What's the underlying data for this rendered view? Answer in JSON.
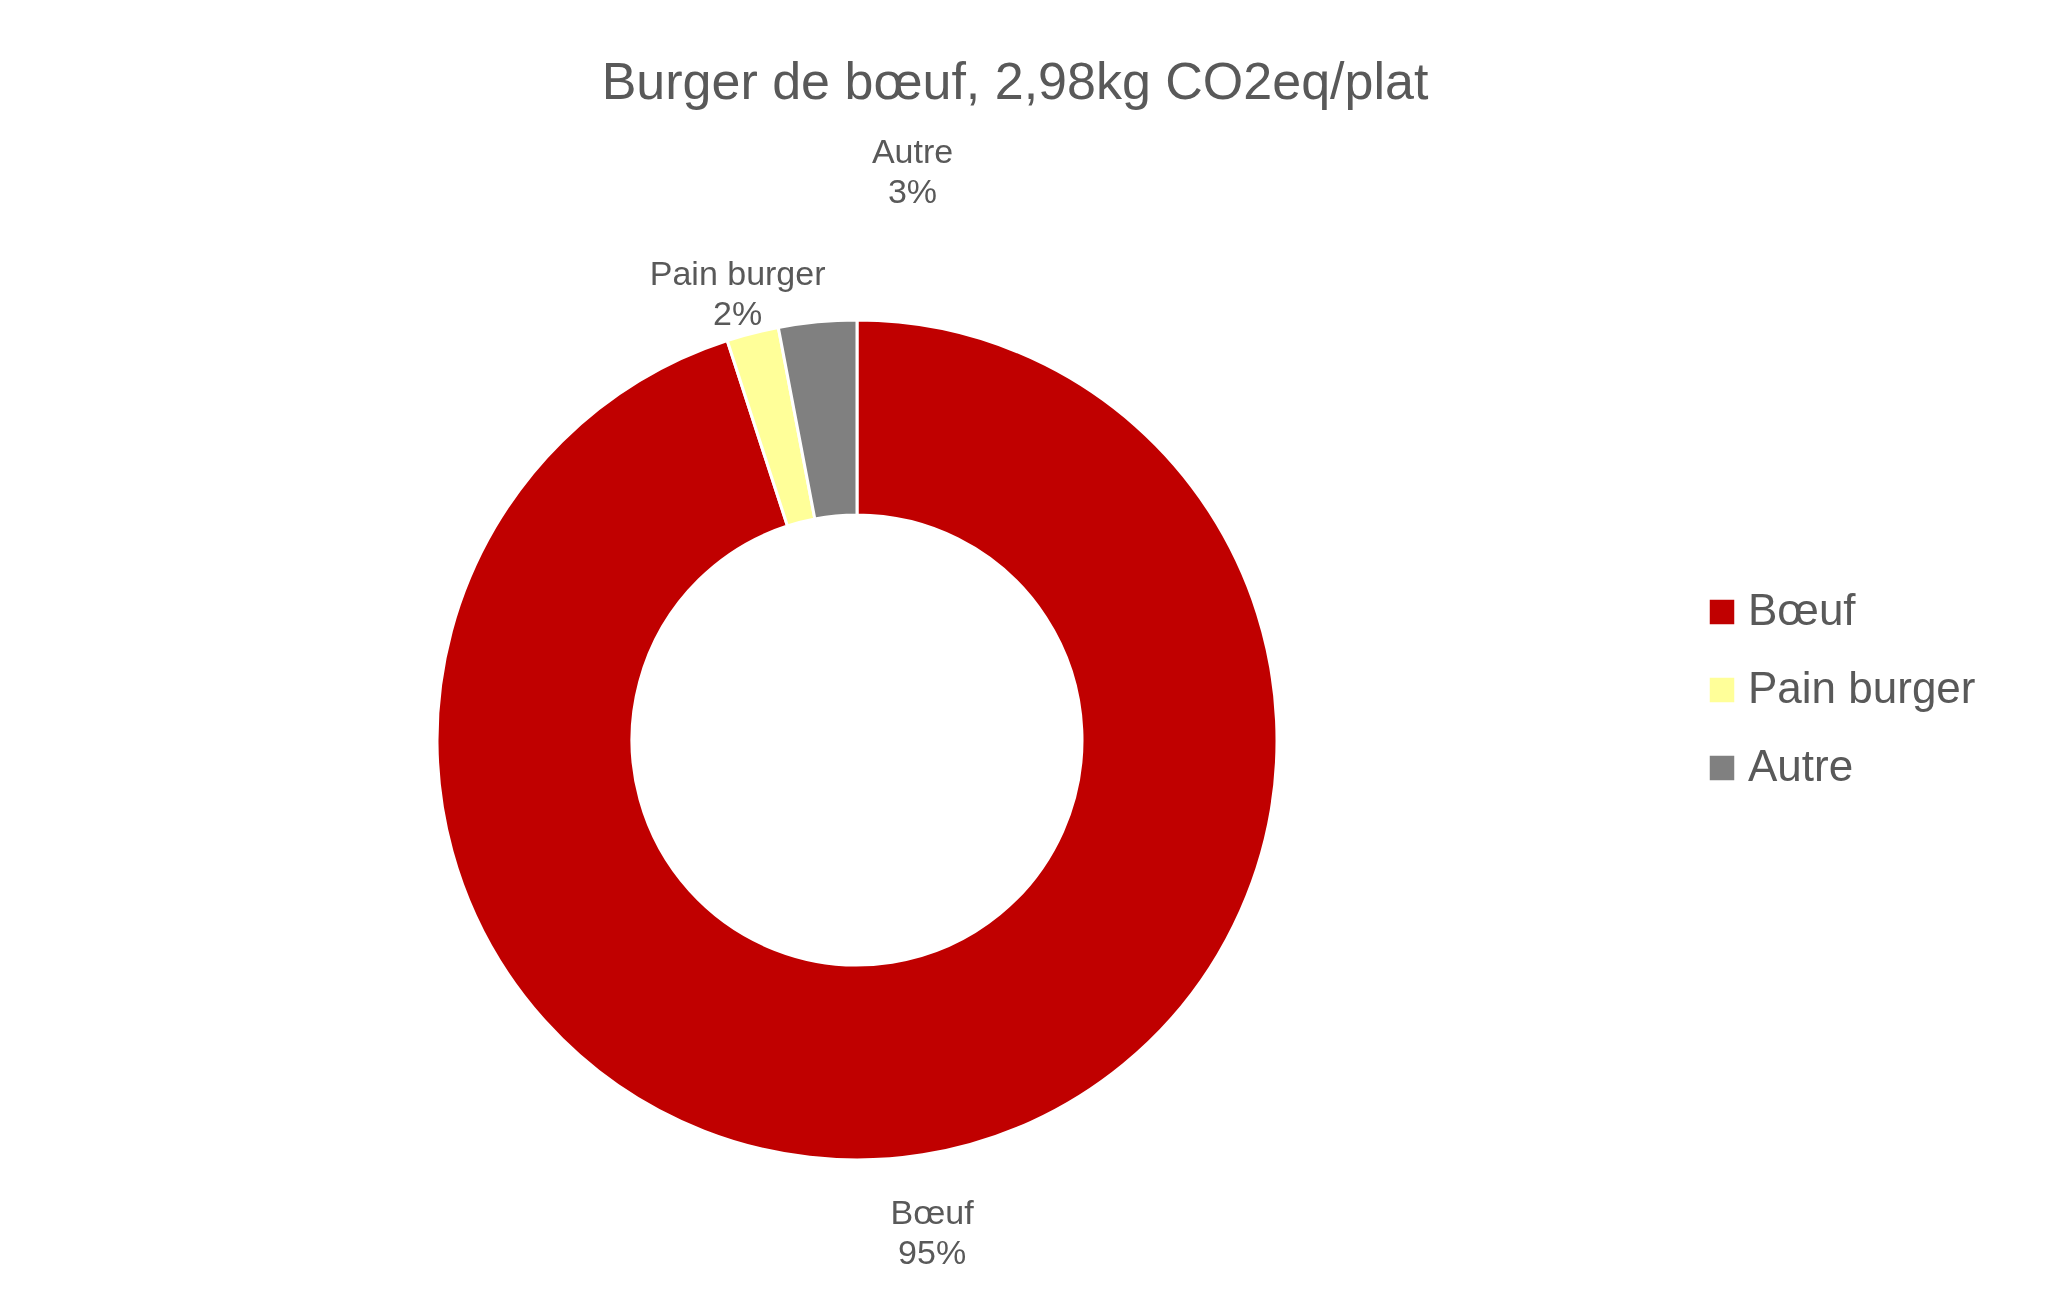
{
  "chart_data": {
    "type": "donut",
    "title": "Burger de bœuf, 2,98kg CO2eq/plat",
    "categories": [
      "Bœuf",
      "Pain burger",
      "Autre"
    ],
    "values": [
      95,
      2,
      3
    ],
    "colors": [
      "#c00000",
      "#ffff99",
      "#808080"
    ],
    "value_labels": [
      "95%",
      "2%",
      "3%"
    ],
    "legend": "right"
  }
}
